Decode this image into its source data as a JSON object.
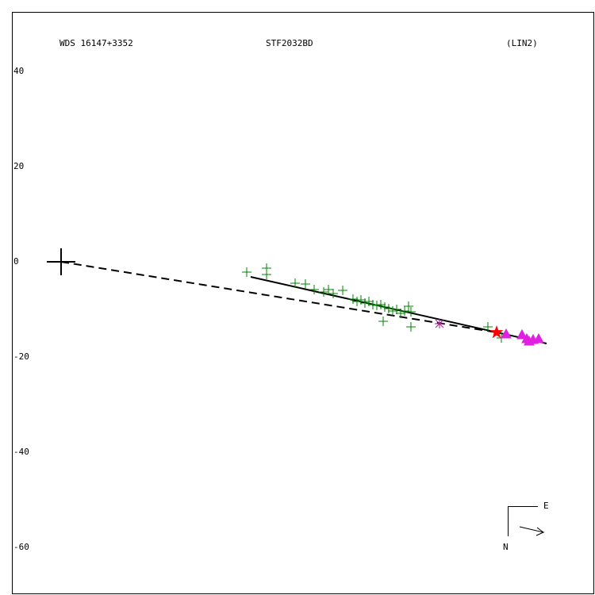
{
  "chart_data": {
    "type": "scatter",
    "header": [
      "WDS 16147+3352",
      "STF2032BD",
      "(LIN2)"
    ],
    "compass": {
      "east": "E",
      "north": "N"
    },
    "xlim": [
      -10.33,
      112.17
    ],
    "ylim": [
      -70,
      52.5
    ],
    "yticks": [
      40,
      20,
      0,
      -20,
      -40,
      -60
    ],
    "lines": [
      {
        "style": "solid",
        "color": "#000000",
        "x": [
          39.83,
          102
        ],
        "y": [
          -3.17,
          -17.17
        ]
      },
      {
        "style": "dashed",
        "color": "#000000",
        "x": [
          0,
          91.5
        ],
        "y": [
          0,
          -14.83
        ]
      }
    ],
    "series": [
      {
        "marker": "cross",
        "color": "#000000",
        "x": [
          0
        ],
        "y": [
          0
        ]
      },
      {
        "marker": "plus",
        "color": "#008000",
        "x": [
          39,
          43.17,
          43.17,
          49.17,
          51.33,
          53.17,
          55.17,
          56.17,
          57.17,
          59.17,
          61.33,
          62.17,
          63,
          63.83,
          64.67,
          65.5,
          66.33,
          67.17,
          68,
          68.83,
          69.67,
          70.5,
          71.33,
          72.17,
          73,
          73.5,
          67.67,
          73.5,
          89.67,
          92.5
        ],
        "y": [
          -2.17,
          -1.33,
          -2.67,
          -4.5,
          -4.67,
          -5.83,
          -6.33,
          -5.83,
          -6.67,
          -6,
          -7.83,
          -8.33,
          -8,
          -8.67,
          -8.33,
          -9,
          -9.17,
          -9,
          -9.5,
          -9.83,
          -10.33,
          -10,
          -10.83,
          -10.33,
          -9.33,
          -10.5,
          -12.5,
          -13.67,
          -13.67,
          -16
        ]
      },
      {
        "marker": "asterisk",
        "color": "#a02090",
        "x": [
          79.5
        ],
        "y": [
          -13
        ]
      },
      {
        "marker": "star",
        "color": "#ff0000",
        "x": [
          91.5
        ],
        "y": [
          -14.83
        ]
      },
      {
        "marker": "triangle",
        "color": "#e020e0",
        "x": [
          93.5,
          96.83,
          97.83,
          98.33,
          99.17,
          100.33
        ],
        "y": [
          -15.17,
          -15.33,
          -16.17,
          -16.67,
          -16.33,
          -16.17
        ]
      }
    ]
  }
}
